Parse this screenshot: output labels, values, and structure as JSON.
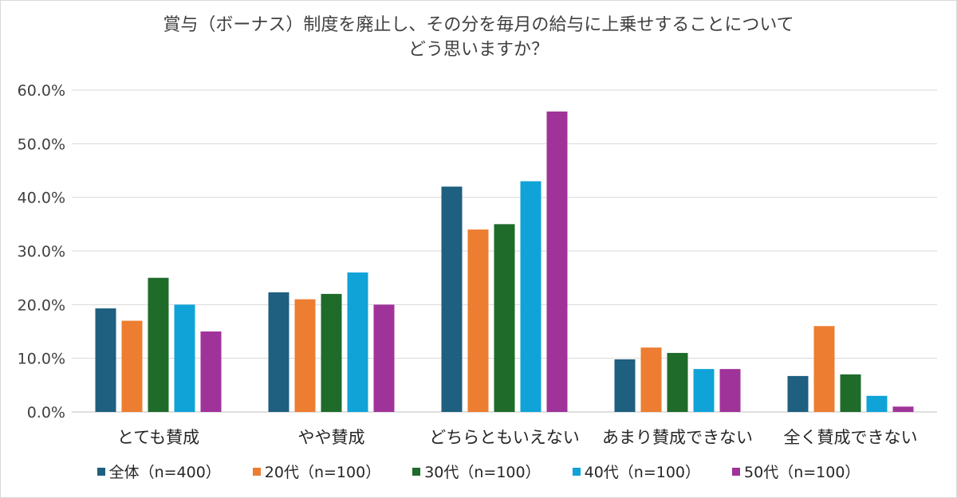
{
  "chart_data": {
    "type": "bar",
    "title_lines": [
      "賞与（ボーナス）制度を廃止し、その分を毎月の給与に上乗せすることについて",
      "どう思いますか？"
    ],
    "categories": [
      "とても賛成",
      "やや賛成",
      "どちらともいえない",
      "あまり賛成できない",
      "全く賛成できない"
    ],
    "series": [
      {
        "name": "全体（n=400）",
        "color": "#1f5f80",
        "values": [
          19.3,
          22.3,
          42.0,
          9.8,
          6.7
        ]
      },
      {
        "name": "20代（n=100）",
        "color": "#ed7d31",
        "values": [
          17,
          21,
          34,
          12,
          16
        ]
      },
      {
        "name": "30代（n=100）",
        "color": "#1e6b2a",
        "values": [
          25,
          22,
          35,
          11,
          7
        ]
      },
      {
        "name": "40代（n=100）",
        "color": "#10a3d8",
        "values": [
          20,
          26,
          43,
          8,
          3
        ]
      },
      {
        "name": "50代（n=100）",
        "color": "#a0339a",
        "values": [
          15,
          20,
          56,
          8,
          1
        ]
      }
    ],
    "ylim": [
      0,
      60
    ],
    "yticks": [
      "0.0%",
      "10.0%",
      "20.0%",
      "30.0%",
      "40.0%",
      "50.0%",
      "60.0%"
    ],
    "grid": true,
    "legend_position": "bottom"
  }
}
